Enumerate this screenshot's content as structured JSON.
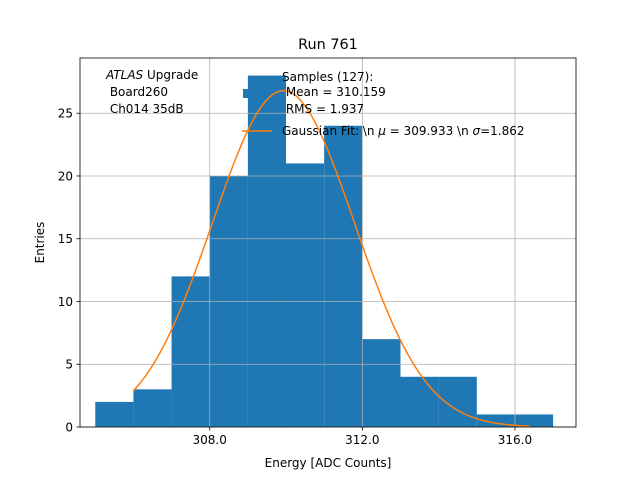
{
  "chart_data": {
    "type": "bar",
    "title": "Run 761",
    "xlabel": "Energy [ADC Counts]",
    "ylabel": "Entries",
    "xlim": [
      304.6,
      317.6
    ],
    "ylim": [
      0,
      29.4
    ],
    "grid": true,
    "xticks": [
      308.0,
      312.0,
      316.0
    ],
    "xtick_labels": [
      "308.0",
      "312.0",
      "316.0"
    ],
    "yticks": [
      0,
      5,
      10,
      15,
      20,
      25
    ],
    "ytick_labels": [
      "0",
      "5",
      "10",
      "15",
      "20",
      "25"
    ],
    "bin_edges": [
      305,
      306,
      307,
      308,
      309,
      310,
      311,
      312,
      313,
      314,
      315,
      316,
      317
    ],
    "counts": [
      2,
      3,
      12,
      20,
      28,
      21,
      24,
      7,
      4,
      4,
      1,
      1
    ],
    "bar_color": "#1f77b4",
    "fit_color": "#ff7f0e",
    "fit": {
      "mu": 309.933,
      "sigma": 1.862,
      "amplitude": 26.8,
      "x_range": [
        306.0,
        316.4
      ]
    },
    "annotation": {
      "italic": "ATLAS",
      "rest": " Upgrade",
      "line2": " Board260",
      "line3": " Ch014 35dB"
    },
    "legend": {
      "position": "upper-right",
      "samples_lines": [
        "Samples (127):",
        " Mean = 310.159",
        " RMS = 1.937"
      ],
      "fit_label": {
        "prefix": "Gaussian Fit: \\n ",
        "mu_sym": "μ",
        "mu_text": " = 309.933 \\n ",
        "sigma_sym": "σ",
        "sigma_text": "=1.862"
      }
    }
  }
}
